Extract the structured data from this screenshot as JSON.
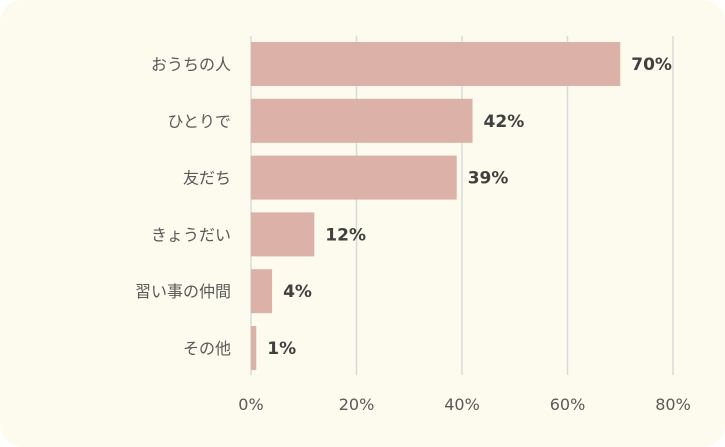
{
  "chart_data": {
    "type": "bar",
    "orientation": "horizontal",
    "categories": [
      "おうちの人",
      "ひとりで",
      "友だち",
      "きょうだい",
      "習い事の仲間",
      "その他"
    ],
    "values": [
      70,
      42,
      39,
      12,
      4,
      1
    ],
    "value_labels": [
      "70%",
      "42%",
      "39%",
      "12%",
      "4%",
      "1%"
    ],
    "xlim": [
      0,
      80
    ],
    "x_ticks": [
      0,
      20,
      40,
      60,
      80
    ],
    "x_tick_labels": [
      "0%",
      "20%",
      "40%",
      "60%",
      "80%"
    ],
    "grid": "vertical",
    "legend": "none",
    "colors": {
      "bar": "#dcb1a8",
      "background": "#fdfbee",
      "grid": "#d9d9d9"
    }
  }
}
